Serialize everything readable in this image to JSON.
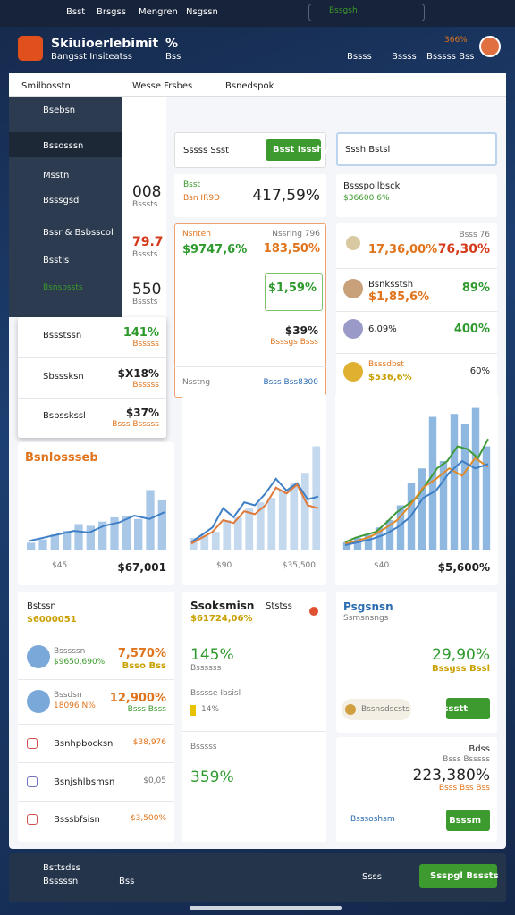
{
  "topbar": {
    "items": [
      "Bsst",
      "Brsgss",
      "Mengren",
      "Nsgssn"
    ],
    "search": "Bssgsh"
  },
  "header": {
    "title": "Skiuioerlebimit",
    "subtitle": "Bangsst Insiteatss",
    "stat": "%",
    "stat_sub": "Bss",
    "actions": [
      "Bssss",
      "Bssss",
      "Bsssss Bss"
    ],
    "badge": "366%"
  },
  "panel": {
    "title": "Smilbosstn",
    "tabs": [
      "Wesse Frsbes",
      "Bsnedspok"
    ]
  },
  "sidebar": {
    "select": "Bsebsn",
    "items": [
      "Bssosssn",
      "Msstn",
      "Bsssgsd",
      "Bssr & Bsbsscol",
      "Bsstls",
      "Bsnsbssts"
    ]
  },
  "summary": [
    {
      "value": "008",
      "label": "Bsssts"
    },
    {
      "value": "79.7",
      "label": "Bsssts"
    },
    {
      "value": "550",
      "label": "Bsssts"
    }
  ],
  "quick_card": {
    "rows": [
      {
        "label": "Bssstssn",
        "value": "141%",
        "note": "Bsssss"
      },
      {
        "label": "Sbsssksn",
        "value": "$X18%",
        "note": "Bsssss"
      },
      {
        "label": "Bsbsskssl",
        "value": "$37%",
        "note": "Bsss Bsssss"
      }
    ]
  },
  "middle": {
    "search_label": "Sssss Ssst",
    "search_button": "Bsst Issshy",
    "kpi": {
      "label": "Bsst",
      "sub": "Bsn IR9D",
      "value": "417,59%"
    },
    "focus": {
      "label": "Nsnteh",
      "value": "$9747,6%",
      "meta": "Nssring 796",
      "change": "183,50%",
      "highlight": "$1,59%",
      "amount": "$39%",
      "amount_note": "Bsssgs Bsss",
      "footer_label": "Nsstng",
      "footer_value": "Bsss Bss8300"
    }
  },
  "right": {
    "search_label": "Sssh Bstsl",
    "pool": {
      "title": "Bssspollbsck",
      "value": "$36600 6%"
    },
    "rows": [
      {
        "meta": "Bsss 76",
        "value": "17,36,00%",
        "change": "76,30%"
      },
      {
        "name": "Bsnksstsh",
        "value": "$1,85,6%",
        "change": "89%"
      },
      {
        "value": "6,09%",
        "change": "400%"
      },
      {
        "name": "Bsssdbst",
        "value": "$536,6%",
        "change": "60%"
      }
    ]
  },
  "charts": [
    {
      "title": "Bsnlossseb",
      "bar_color": "#a9c8e8",
      "bars": [
        8,
        12,
        18,
        22,
        30,
        28,
        33,
        38,
        40,
        36,
        70,
        58
      ],
      "lines": [
        {
          "color": "#3e7fc6",
          "values": [
            10,
            14,
            18,
            22,
            20,
            28,
            32,
            40,
            36,
            44
          ]
        }
      ],
      "footer": [
        "$45",
        "$67,001"
      ]
    },
    {
      "bar_color": "#c5d9ee",
      "bars": [
        8,
        10,
        12,
        20,
        22,
        28,
        32,
        35,
        40,
        45,
        52,
        70
      ],
      "lines": [
        {
          "color": "#3e7fc6",
          "values": [
            5,
            10,
            15,
            28,
            22,
            32,
            30,
            38,
            48,
            40,
            45,
            34,
            36
          ]
        },
        {
          "color": "#e07a3a",
          "values": [
            4,
            8,
            12,
            20,
            18,
            26,
            24,
            30,
            42,
            38,
            44,
            30,
            28
          ]
        }
      ],
      "footer": [
        "$90",
        "$35,500"
      ]
    },
    {
      "bar_color": "#8fb8e0",
      "bars": [
        5,
        8,
        10,
        15,
        20,
        30,
        45,
        55,
        90,
        60,
        92,
        85,
        96,
        70
      ],
      "lines": [
        {
          "color": "#3f9b3a",
          "values": [
            5,
            8,
            10,
            12,
            18,
            25,
            30,
            35,
            45,
            55,
            60,
            70,
            68,
            62,
            75
          ]
        },
        {
          "color": "#e08a2a",
          "values": [
            4,
            6,
            9,
            14,
            20,
            30,
            42,
            48,
            55,
            50,
            62,
            56
          ]
        },
        {
          "color": "#3e7fc6",
          "values": [
            3,
            5,
            7,
            10,
            15,
            22,
            35,
            40,
            52,
            60,
            55,
            58
          ]
        }
      ],
      "footer": [
        "$40",
        "$5,600%"
      ]
    }
  ],
  "bottom_left": {
    "title": "Bstssn",
    "value": "$6000051",
    "rows": [
      {
        "name": "Bsssssn",
        "sub": "$9650,690%",
        "value": "7,570%",
        "note": "Bsso Bss"
      },
      {
        "name": "Bssdsn",
        "sub": "18096 N%",
        "value": "12,900%",
        "note": "Bsss Bsss"
      },
      {
        "name": "Bsnhpbocksn",
        "value": "$38,976"
      },
      {
        "name": "Bsnjshlbsmsn",
        "value": "$0,05"
      },
      {
        "name": "Bsssbfsisn",
        "value": "$3,500%"
      }
    ]
  },
  "bottom_middle": {
    "title": "Ssoksmisn",
    "value": "$61724,06%",
    "status": "Ststss",
    "metric": "145%",
    "metric_label": "Bssssss",
    "bar_label": "Bsssse Ibsisl",
    "bar_value": "14%",
    "section": "Bsssss",
    "section_value": "359%"
  },
  "bottom_right": {
    "title": "Psgsnsn",
    "subtitle": "Ssmsnsngs",
    "value": "29,90%",
    "value_note": "Bssgss Bssl",
    "chip": "Bssnsdscsts",
    "button": "Bssstt",
    "tag": "Bdss",
    "tag_note": "Bsss Bsssss",
    "total": "223,380%",
    "total_note": "Bsss Bss Bss",
    "link": "Bsssoshsm",
    "button2": "Bsssm"
  },
  "footer": {
    "title": "Bsttsdss",
    "subtitle": "Bsssssn",
    "badge": "Bss",
    "hint": "Ssss",
    "button": "Ssspgl Bsssts"
  }
}
